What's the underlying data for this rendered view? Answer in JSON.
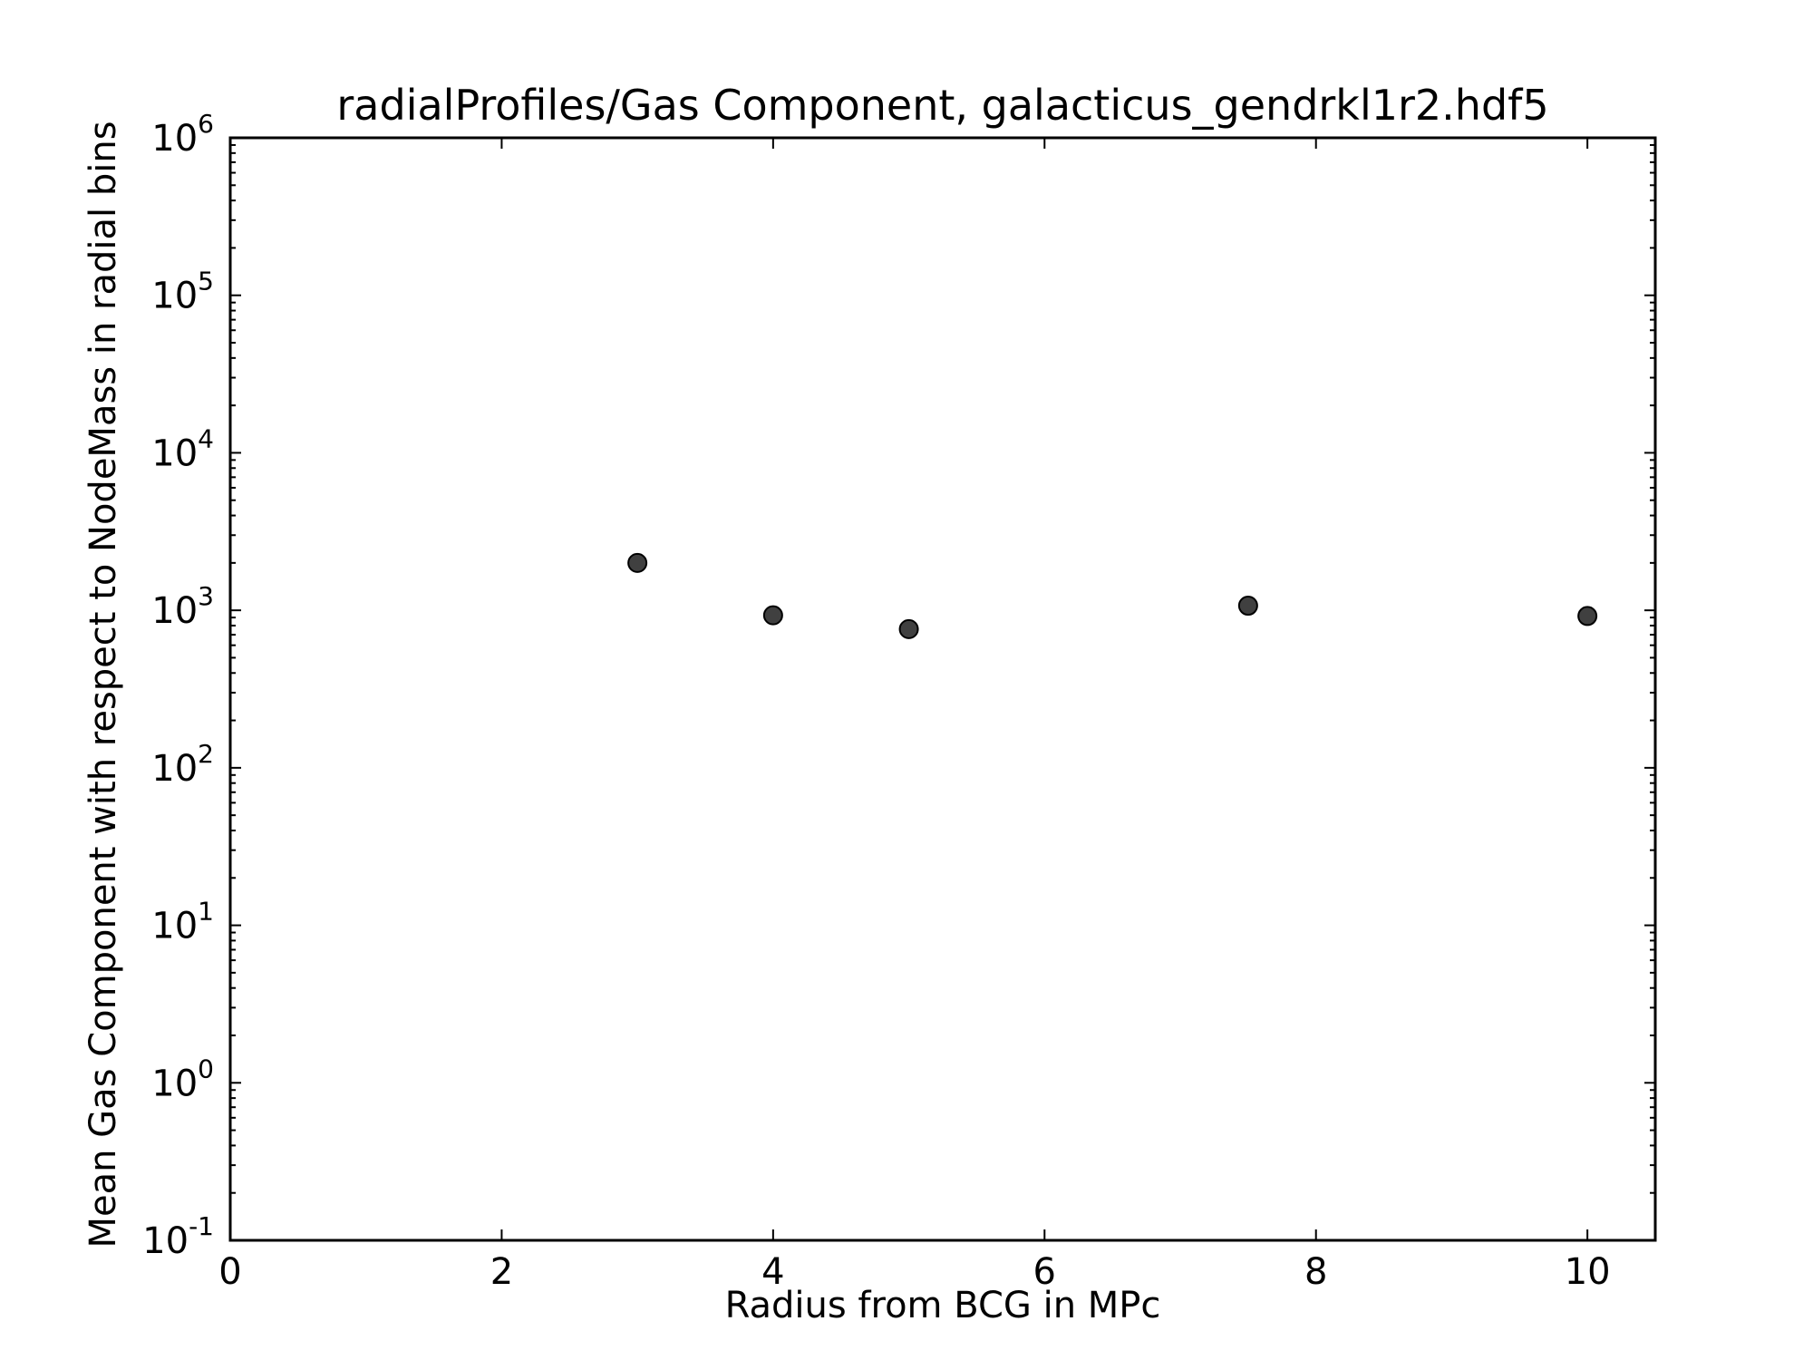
{
  "chart_data": {
    "type": "scatter",
    "title": "radialProfiles/Gas Component, galacticus_gendrkl1r2.hdf5",
    "xlabel": "Radius from BCG in MPc",
    "ylabel": "Mean Gas Component with respect to NodeMass in radial bins",
    "xlim": [
      0,
      10.5
    ],
    "ylim": [
      0.1,
      1000000
    ],
    "yscale": "log",
    "x_ticks": [
      0,
      2,
      4,
      6,
      8,
      10
    ],
    "x_tick_labels": [
      "0",
      "2",
      "4",
      "6",
      "8",
      "10"
    ],
    "y_ticks": [
      0.1,
      1,
      10,
      100,
      1000,
      10000,
      100000,
      1000000
    ],
    "y_tick_labels": [
      {
        "base": "10",
        "exp": "-1"
      },
      {
        "base": "10",
        "exp": "0"
      },
      {
        "base": "10",
        "exp": "1"
      },
      {
        "base": "10",
        "exp": "2"
      },
      {
        "base": "10",
        "exp": "3"
      },
      {
        "base": "10",
        "exp": "4"
      },
      {
        "base": "10",
        "exp": "5"
      },
      {
        "base": "10",
        "exp": "6"
      }
    ],
    "grid": false,
    "series": [
      {
        "x": [
          3,
          4,
          5,
          7.5,
          10
        ],
        "y": [
          2000,
          930,
          760,
          1070,
          920
        ],
        "color": "#404040"
      }
    ]
  }
}
